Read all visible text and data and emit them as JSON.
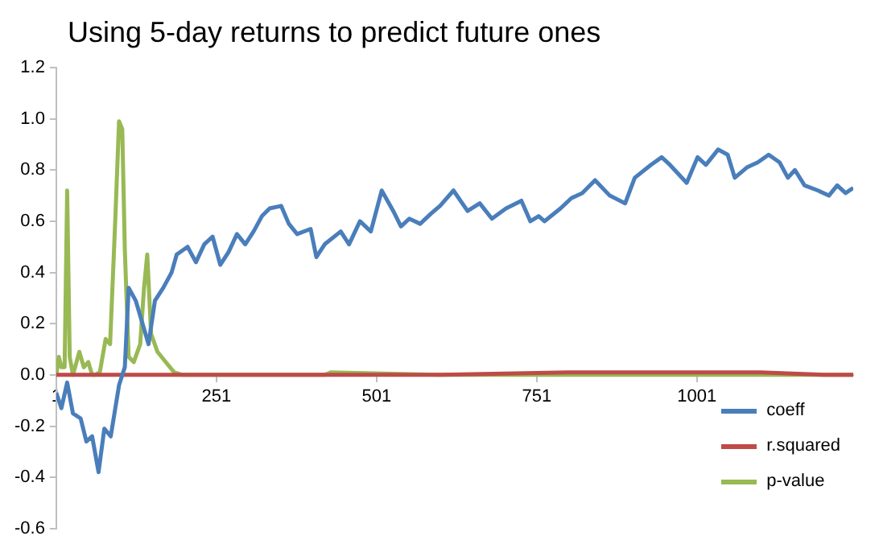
{
  "chart_data": {
    "type": "line",
    "title": "Using 5-day returns to predict future ones",
    "xlim": [
      1,
      1245
    ],
    "xticks": [
      1,
      251,
      501,
      751,
      1001
    ],
    "ylim": [
      -0.6,
      1.2
    ],
    "yticks": [
      {
        "value": -0.6,
        "label": "-0.6"
      },
      {
        "value": -0.4,
        "label": "-0.4"
      },
      {
        "value": -0.2,
        "label": "-0.2"
      },
      {
        "value": 0,
        "label": "0.0"
      },
      {
        "value": 0.2,
        "label": "0.2"
      },
      {
        "value": 0.4,
        "label": "0.4"
      },
      {
        "value": 0.6,
        "label": "0.6"
      },
      {
        "value": 0.8,
        "label": "0.8"
      },
      {
        "value": 1,
        "label": "1.0"
      },
      {
        "value": 1.2,
        "label": "1.2"
      }
    ],
    "grid": false,
    "legend": "bottom right",
    "marker": "none",
    "line_style": "solid",
    "series": [
      {
        "name": "coeff",
        "color": "#4a7ebb",
        "x": [
          1,
          9,
          18,
          27,
          39,
          48,
          57,
          67,
          76,
          86,
          99,
          108,
          114,
          125,
          138,
          145,
          155,
          168,
          181,
          189,
          206,
          219,
          232,
          245,
          257,
          270,
          283,
          296,
          309,
          322,
          334,
          352,
          364,
          377,
          398,
          407,
          420,
          445,
          458,
          475,
          492,
          509,
          527,
          539,
          552,
          569,
          586,
          600,
          621,
          643,
          662,
          681,
          703,
          727,
          741,
          754,
          763,
          788,
          805,
          822,
          842,
          865,
          889,
          904,
          929,
          946,
          959,
          985,
          1002,
          1015,
          1034,
          1049,
          1060,
          1079,
          1096,
          1113,
          1130,
          1143,
          1154,
          1169,
          1190,
          1207,
          1220,
          1233,
          1245
        ],
        "values": [
          -0.07,
          -0.13,
          -0.03,
          -0.15,
          -0.17,
          -0.26,
          -0.24,
          -0.38,
          -0.21,
          -0.24,
          -0.04,
          0.03,
          0.34,
          0.29,
          0.18,
          0.12,
          0.29,
          0.34,
          0.4,
          0.47,
          0.5,
          0.44,
          0.51,
          0.54,
          0.43,
          0.48,
          0.55,
          0.51,
          0.56,
          0.62,
          0.65,
          0.66,
          0.59,
          0.55,
          0.57,
          0.46,
          0.51,
          0.56,
          0.51,
          0.6,
          0.56,
          0.72,
          0.64,
          0.58,
          0.61,
          0.59,
          0.63,
          0.66,
          0.72,
          0.64,
          0.67,
          0.61,
          0.65,
          0.68,
          0.6,
          0.62,
          0.6,
          0.65,
          0.69,
          0.71,
          0.76,
          0.7,
          0.67,
          0.77,
          0.82,
          0.85,
          0.82,
          0.75,
          0.85,
          0.82,
          0.88,
          0.86,
          0.77,
          0.81,
          0.83,
          0.86,
          0.83,
          0.77,
          0.8,
          0.74,
          0.72,
          0.7,
          0.74,
          0.71,
          0.73
        ]
      },
      {
        "name": "r.squared",
        "color": "#be4b48",
        "x": [
          1,
          200,
          400,
          600,
          800,
          900,
          1000,
          1100,
          1200,
          1245
        ],
        "values": [
          0,
          0,
          0,
          0,
          0.01,
          0.01,
          0.01,
          0.01,
          0,
          0
        ]
      },
      {
        "name": "p-value",
        "color": "#98b954",
        "x": [
          1,
          5,
          9,
          14,
          18,
          22,
          27,
          37,
          44,
          51,
          57,
          61,
          69,
          78,
          85,
          93,
          99,
          104,
          108,
          114,
          122,
          132,
          138,
          143,
          149,
          159,
          172,
          185,
          198,
          300,
          420,
          430,
          600,
          800,
          1000,
          1245
        ],
        "values": [
          0,
          0.07,
          0.03,
          0.03,
          0.72,
          0.07,
          0,
          0.09,
          0.03,
          0.05,
          0,
          0,
          0.01,
          0.14,
          0.12,
          0.6,
          0.99,
          0.96,
          0.49,
          0.07,
          0.05,
          0.12,
          0.34,
          0.47,
          0.16,
          0.09,
          0.05,
          0.01,
          0,
          0,
          0,
          0.01,
          0,
          0,
          0,
          0
        ]
      }
    ]
  }
}
